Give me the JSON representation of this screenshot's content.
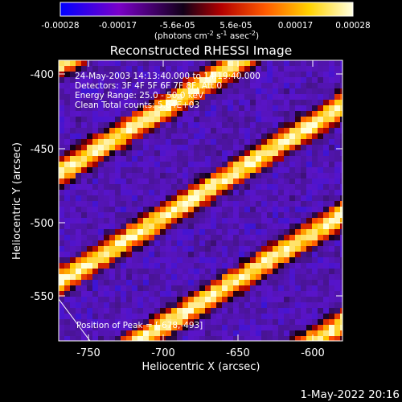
{
  "colorbar": {
    "tick_labels": [
      "-0.00028",
      "-0.00017",
      "-5.6e-05",
      "5.6e-05",
      "0.00017",
      "0.00028"
    ],
    "tick_values": [
      -0.00028,
      -0.00017,
      -5.6e-05,
      5.6e-05,
      0.00017,
      0.00028
    ],
    "range": [
      -0.00028,
      0.00028
    ],
    "unit_label": "(photons cm",
    "unit_exp1": "-2",
    "unit_mid1": " s",
    "unit_exp2": "-1",
    "unit_mid2": " asec",
    "unit_exp3": "-2",
    "unit_end": ")",
    "colors": [
      "#0000ff",
      "#7a00c8",
      "#000000",
      "#b30000",
      "#ff5a00",
      "#ffd200",
      "#ffffe0"
    ]
  },
  "plot": {
    "title": "Reconstructed RHESSI Image",
    "xlabel": "Heliocentric X (arcsec)",
    "ylabel": "Heliocentric Y (arcsec)",
    "x_tick_labels": [
      "-750",
      "-700",
      "-650",
      "-600"
    ],
    "y_tick_labels": [
      "-400",
      "-450",
      "-500",
      "-550"
    ],
    "annotations": [
      "24-May-2003 14:13:40.000 to 14:19:40.000",
      "Detectors: 3F 4F 5F 6F 7F 8F, Att 0",
      "Energy Range: 25.0 - 50.0 keV",
      "Clean     Total counts: 5.64E+03"
    ],
    "peak_label": "Position of Peak = [-678,-493]"
  },
  "footer": {
    "timestamp": "1-May-2022 20:16"
  }
}
